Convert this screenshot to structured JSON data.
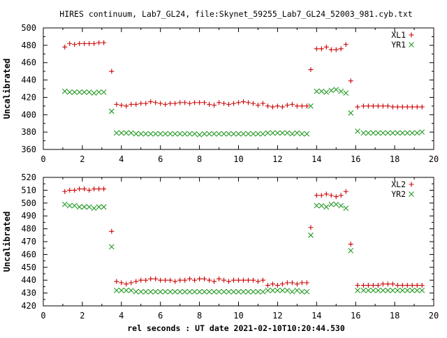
{
  "title": "HIRES continuum, Lab7_GL24, file:Skynet_59255_Lab7_GL24_52003_981.cyb.txt",
  "xlabel": "rel seconds : UT date 2021-02-10T10:20:44.530",
  "colors": {
    "plus": "#cc0000",
    "cross": "#229922",
    "frame": "#000000"
  },
  "chart_data": [
    {
      "type": "scatter",
      "ylabel": "Uncalibrated",
      "xlim": [
        0,
        20
      ],
      "ylim": [
        360,
        500
      ],
      "xticks": [
        0,
        2,
        4,
        6,
        8,
        10,
        12,
        14,
        16,
        18,
        20
      ],
      "yticks": [
        360,
        380,
        400,
        420,
        440,
        460,
        480,
        500
      ],
      "grid": false,
      "legend": "top-right",
      "series": [
        {
          "name": "XL1",
          "marker": "plus",
          "x": [
            1.1,
            1.35,
            1.6,
            1.85,
            2.1,
            2.35,
            2.6,
            2.85,
            3.1,
            3.5,
            3.75,
            4.0,
            4.25,
            4.5,
            4.75,
            5.0,
            5.25,
            5.5,
            5.75,
            6.0,
            6.25,
            6.5,
            6.75,
            7.0,
            7.25,
            7.5,
            7.75,
            8.0,
            8.25,
            8.5,
            8.75,
            9.0,
            9.25,
            9.5,
            9.75,
            10.0,
            10.25,
            10.5,
            10.75,
            11.0,
            11.25,
            11.5,
            11.75,
            12.0,
            12.25,
            12.5,
            12.75,
            13.0,
            13.25,
            13.5,
            13.7,
            14.0,
            14.25,
            14.5,
            14.75,
            15.0,
            15.25,
            15.5,
            15.75,
            16.1,
            16.4,
            16.65,
            16.9,
            17.15,
            17.4,
            17.65,
            17.9,
            18.15,
            18.4,
            18.65,
            18.9,
            19.15,
            19.4
          ],
          "y": [
            478,
            482,
            481,
            482,
            482,
            482,
            482,
            483,
            483,
            450,
            412,
            411,
            410,
            412,
            412,
            413,
            413,
            415,
            414,
            413,
            412,
            413,
            413,
            414,
            414,
            413,
            414,
            414,
            414,
            412,
            411,
            414,
            413,
            412,
            413,
            414,
            415,
            414,
            413,
            411,
            413,
            410,
            409,
            410,
            409,
            411,
            412,
            410,
            410,
            410,
            452,
            476,
            476,
            478,
            475,
            475,
            476,
            481,
            439,
            409,
            410,
            410,
            410,
            410,
            410,
            410,
            409,
            409,
            409,
            409,
            409,
            409,
            409
          ]
        },
        {
          "name": "YR1",
          "marker": "cross",
          "x": [
            1.1,
            1.35,
            1.6,
            1.85,
            2.1,
            2.35,
            2.6,
            2.85,
            3.1,
            3.5,
            3.75,
            4.0,
            4.25,
            4.5,
            4.75,
            5.0,
            5.25,
            5.5,
            5.75,
            6.0,
            6.25,
            6.5,
            6.75,
            7.0,
            7.25,
            7.5,
            7.75,
            8.0,
            8.25,
            8.5,
            8.75,
            9.0,
            9.25,
            9.5,
            9.75,
            10.0,
            10.25,
            10.5,
            10.75,
            11.0,
            11.25,
            11.5,
            11.75,
            12.0,
            12.25,
            12.5,
            12.75,
            13.0,
            13.25,
            13.5,
            13.7,
            14.0,
            14.25,
            14.5,
            14.75,
            15.0,
            15.25,
            15.5,
            15.75,
            16.1,
            16.4,
            16.65,
            16.9,
            17.15,
            17.4,
            17.65,
            17.9,
            18.15,
            18.4,
            18.65,
            18.9,
            19.15,
            19.4
          ],
          "y": [
            427,
            426,
            426,
            426,
            426,
            426,
            425,
            426,
            426,
            404,
            379,
            379,
            379,
            379,
            378,
            378,
            378,
            378,
            378,
            378,
            378,
            378,
            378,
            378,
            378,
            378,
            378,
            377,
            378,
            378,
            378,
            378,
            378,
            378,
            378,
            378,
            378,
            378,
            378,
            378,
            378,
            379,
            379,
            379,
            379,
            379,
            378,
            379,
            378,
            378,
            410,
            427,
            427,
            426,
            428,
            429,
            427,
            425,
            402,
            381,
            379,
            379,
            379,
            379,
            379,
            379,
            379,
            379,
            379,
            379,
            379,
            379,
            380
          ]
        }
      ]
    },
    {
      "type": "scatter",
      "ylabel": "Uncalibrated",
      "xlim": [
        0,
        20
      ],
      "ylim": [
        420,
        520
      ],
      "xticks": [
        0,
        2,
        4,
        6,
        8,
        10,
        12,
        14,
        16,
        18,
        20
      ],
      "yticks": [
        420,
        430,
        440,
        450,
        460,
        470,
        480,
        490,
        500,
        510,
        520
      ],
      "grid": false,
      "legend": "top-right",
      "series": [
        {
          "name": "XL2",
          "marker": "plus",
          "x": [
            1.1,
            1.35,
            1.6,
            1.85,
            2.1,
            2.35,
            2.6,
            2.85,
            3.1,
            3.5,
            3.75,
            4.0,
            4.25,
            4.5,
            4.75,
            5.0,
            5.25,
            5.5,
            5.75,
            6.0,
            6.25,
            6.5,
            6.75,
            7.0,
            7.25,
            7.5,
            7.75,
            8.0,
            8.25,
            8.5,
            8.75,
            9.0,
            9.25,
            9.5,
            9.75,
            10.0,
            10.25,
            10.5,
            10.75,
            11.0,
            11.25,
            11.5,
            11.75,
            12.0,
            12.25,
            12.5,
            12.75,
            13.0,
            13.25,
            13.5,
            13.7,
            14.0,
            14.25,
            14.5,
            14.75,
            15.0,
            15.25,
            15.5,
            15.75,
            16.1,
            16.4,
            16.65,
            16.9,
            17.15,
            17.4,
            17.65,
            17.9,
            18.15,
            18.4,
            18.65,
            18.9,
            19.15,
            19.4
          ],
          "y": [
            509,
            510,
            510,
            511,
            511,
            510,
            511,
            511,
            511,
            478,
            439,
            438,
            437,
            438,
            439,
            440,
            440,
            441,
            441,
            440,
            440,
            440,
            439,
            440,
            440,
            441,
            440,
            441,
            441,
            440,
            439,
            441,
            440,
            439,
            440,
            440,
            440,
            440,
            440,
            439,
            440,
            436,
            437,
            436,
            437,
            438,
            438,
            437,
            438,
            438,
            481,
            506,
            506,
            507,
            506,
            505,
            506,
            509,
            468,
            436,
            436,
            436,
            436,
            436,
            437,
            437,
            437,
            436,
            436,
            436,
            436,
            436,
            436
          ]
        },
        {
          "name": "YR2",
          "marker": "cross",
          "x": [
            1.1,
            1.35,
            1.6,
            1.85,
            2.1,
            2.35,
            2.6,
            2.85,
            3.1,
            3.5,
            3.75,
            4.0,
            4.25,
            4.5,
            4.75,
            5.0,
            5.25,
            5.5,
            5.75,
            6.0,
            6.25,
            6.5,
            6.75,
            7.0,
            7.25,
            7.5,
            7.75,
            8.0,
            8.25,
            8.5,
            8.75,
            9.0,
            9.25,
            9.5,
            9.75,
            10.0,
            10.25,
            10.5,
            10.75,
            11.0,
            11.25,
            11.5,
            11.75,
            12.0,
            12.25,
            12.5,
            12.75,
            13.0,
            13.25,
            13.5,
            13.7,
            14.0,
            14.25,
            14.5,
            14.75,
            15.0,
            15.25,
            15.5,
            15.75,
            16.1,
            16.4,
            16.65,
            16.9,
            17.15,
            17.4,
            17.65,
            17.9,
            18.15,
            18.4,
            18.65,
            18.9,
            19.15,
            19.4
          ],
          "y": [
            499,
            498,
            498,
            497,
            497,
            497,
            496,
            497,
            497,
            466,
            432,
            432,
            432,
            432,
            431,
            431,
            431,
            431,
            431,
            431,
            431,
            431,
            431,
            431,
            431,
            431,
            431,
            431,
            431,
            431,
            431,
            431,
            431,
            431,
            431,
            431,
            431,
            431,
            431,
            431,
            431,
            432,
            432,
            432,
            432,
            432,
            431,
            432,
            431,
            431,
            475,
            498,
            498,
            497,
            499,
            499,
            498,
            496,
            463,
            432,
            432,
            432,
            432,
            432,
            432,
            432,
            432,
            432,
            432,
            432,
            432,
            432,
            432
          ]
        }
      ]
    }
  ]
}
